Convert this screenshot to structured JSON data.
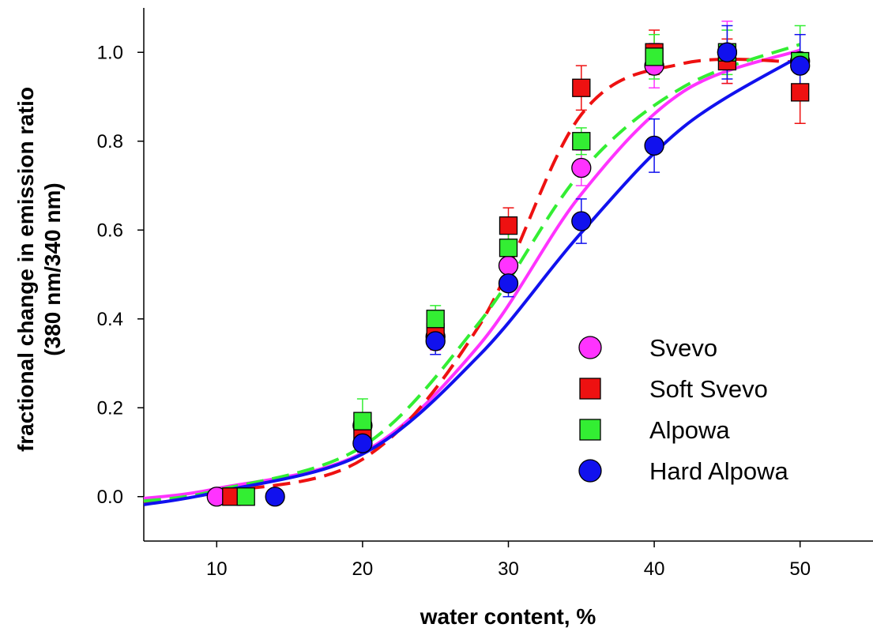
{
  "chart_data": {
    "type": "scatter",
    "title": "",
    "xlabel": "water content, %",
    "ylabel_line1": "fractional change in emission ratio",
    "ylabel_line2": "(380 nm/340 nm)",
    "xlim": [
      5,
      55
    ],
    "ylim": [
      -0.1,
      1.1
    ],
    "xticks": [
      10,
      20,
      30,
      40,
      50
    ],
    "xtick_labels": [
      "10",
      "20",
      "30",
      "40",
      "50"
    ],
    "yticks": [
      0.0,
      0.2,
      0.4,
      0.6,
      0.8,
      1.0
    ],
    "ytick_labels": [
      "0.0",
      "0.2",
      "0.4",
      "0.6",
      "0.8",
      "1.0"
    ],
    "grid": false,
    "legend_position": "lower-right",
    "series": [
      {
        "name": "Svevo",
        "marker": "circle",
        "color": "#ff33ff",
        "line_style": "solid",
        "x": [
          10,
          20,
          25,
          30,
          35,
          40,
          45,
          50
        ],
        "y": [
          0.0,
          0.16,
          0.36,
          0.52,
          0.74,
          0.97,
          1.0,
          0.98
        ],
        "err": [
          0.01,
          0.02,
          0.03,
          0.04,
          0.04,
          0.05,
          0.07,
          0.06
        ],
        "fit": [
          -0.004,
          0.018,
          0.099,
          0.341,
          0.681,
          0.912,
          1.005
        ]
      },
      {
        "name": "Soft Svevo",
        "marker": "square",
        "color": "#ee1111",
        "line_style": "dashed",
        "x": [
          11,
          20,
          25,
          30,
          35,
          40,
          45,
          50
        ],
        "y": [
          0.0,
          0.15,
          0.37,
          0.61,
          0.92,
          1.0,
          0.98,
          0.91
        ],
        "err": [
          0.01,
          0.02,
          0.03,
          0.04,
          0.05,
          0.05,
          0.05,
          0.07
        ],
        "fit": [
          -0.013,
          0.009,
          0.084,
          0.385,
          0.86,
          0.975,
          0.978
        ]
      },
      {
        "name": "Alpowa",
        "marker": "square",
        "color": "#33ee33",
        "line_style": "dashed",
        "x": [
          12,
          20,
          25,
          30,
          35,
          40,
          45,
          50
        ],
        "y": [
          0.0,
          0.17,
          0.4,
          0.56,
          0.8,
          0.99,
          1.0,
          0.98
        ],
        "err": [
          0.01,
          0.05,
          0.03,
          0.05,
          0.03,
          0.05,
          0.05,
          0.08
        ],
        "fit": [
          -0.01,
          0.014,
          0.113,
          0.392,
          0.731,
          0.922,
          1.018
        ]
      },
      {
        "name": "Hard Alpowa",
        "marker": "circle",
        "color": "#1111ee",
        "line_style": "solid",
        "x": [
          14,
          20,
          25,
          30,
          35,
          40,
          45,
          50
        ],
        "y": [
          0.0,
          0.12,
          0.35,
          0.48,
          0.62,
          0.79,
          1.0,
          0.97
        ],
        "err": [
          0.01,
          0.02,
          0.03,
          0.03,
          0.05,
          0.06,
          0.06,
          0.07
        ],
        "fit": [
          -0.018,
          0.01,
          0.096,
          0.318,
          0.594,
          0.832,
          0.992
        ]
      }
    ],
    "fit_x": [
      5,
      10,
      20,
      28,
      35,
      42,
      50
    ]
  }
}
